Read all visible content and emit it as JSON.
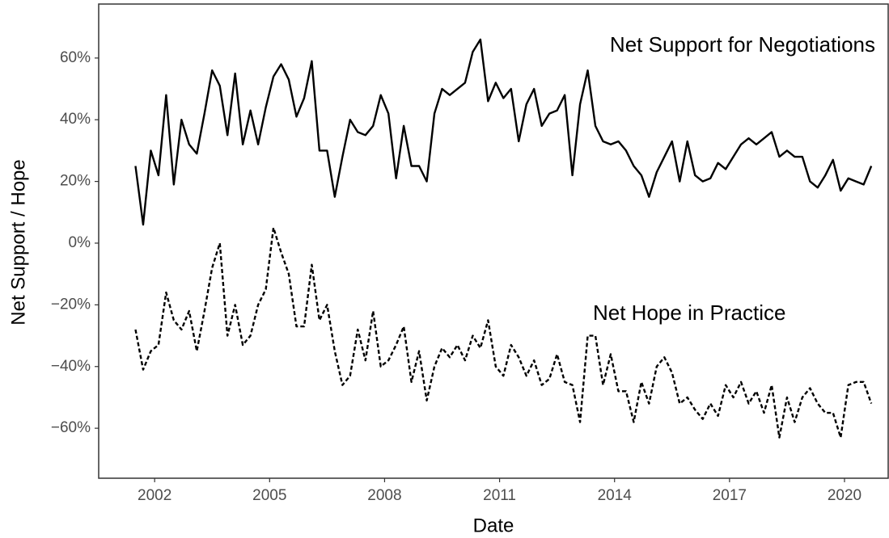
{
  "chart_data": {
    "type": "line",
    "x_label": "Date",
    "y_label": "Net Support / Hope",
    "x": [
      2001.5,
      2001.7,
      2001.9,
      2002.1,
      2002.3,
      2002.5,
      2002.7,
      2002.9,
      2003.1,
      2003.3,
      2003.5,
      2003.7,
      2003.9,
      2004.1,
      2004.3,
      2004.5,
      2004.7,
      2004.9,
      2005.1,
      2005.3,
      2005.5,
      2005.7,
      2005.9,
      2006.1,
      2006.3,
      2006.5,
      2006.7,
      2006.9,
      2007.1,
      2007.3,
      2007.5,
      2007.7,
      2007.9,
      2008.1,
      2008.3,
      2008.5,
      2008.7,
      2008.9,
      2009.1,
      2009.3,
      2009.5,
      2009.7,
      2009.9,
      2010.1,
      2010.3,
      2010.5,
      2010.7,
      2010.9,
      2011.1,
      2011.3,
      2011.5,
      2011.7,
      2011.9,
      2012.1,
      2012.3,
      2012.5,
      2012.7,
      2012.9,
      2013.1,
      2013.3,
      2013.5,
      2013.7,
      2013.9,
      2014.1,
      2014.3,
      2014.5,
      2014.7,
      2014.9,
      2015.1,
      2015.3,
      2015.5,
      2015.7,
      2015.9,
      2016.1,
      2016.3,
      2016.5,
      2016.7,
      2016.9,
      2017.1,
      2017.3,
      2017.5,
      2017.7,
      2017.9,
      2018.1,
      2018.3,
      2018.5,
      2018.7,
      2018.9,
      2019.1,
      2019.3,
      2019.5,
      2019.7,
      2019.9,
      2020.1,
      2020.3,
      2020.5,
      2020.7
    ],
    "series": [
      {
        "name": "Net Support for Negotiations",
        "color": "#000000",
        "style": "solid",
        "values": [
          25,
          6,
          30,
          22,
          48,
          19,
          40,
          32,
          29,
          42,
          56,
          51,
          35,
          55,
          32,
          43,
          32,
          44,
          54,
          58,
          53,
          41,
          47,
          59,
          30,
          30,
          15,
          28,
          40,
          36,
          35,
          38,
          48,
          42,
          21,
          38,
          25,
          25,
          20,
          42,
          50,
          48,
          50,
          52,
          62,
          66,
          46,
          52,
          47,
          50,
          33,
          45,
          50,
          38,
          42,
          43,
          48,
          22,
          45,
          56,
          38,
          33,
          32,
          33,
          30,
          25,
          22,
          15,
          23,
          28,
          33,
          20,
          33,
          22,
          20,
          21,
          26,
          24,
          28,
          32,
          34,
          32,
          34,
          36,
          28,
          30,
          28,
          28,
          20,
          18,
          22,
          27,
          17,
          21,
          20,
          19,
          25
        ]
      },
      {
        "name": "Net Hope in Practice",
        "color": "#000000",
        "style": "dashed",
        "values": [
          -28,
          -41,
          -35,
          -33,
          -16,
          -25,
          -28,
          -22,
          -35,
          -22,
          -8,
          0,
          -30,
          -20,
          -33,
          -30,
          -20,
          -15,
          5,
          -3,
          -10,
          -27,
          -27,
          -7,
          -25,
          -20,
          -35,
          -46,
          -43,
          -28,
          -38,
          -22,
          -40,
          -38,
          -33,
          -27,
          -45,
          -35,
          -51,
          -40,
          -34,
          -37,
          -33,
          -38,
          -30,
          -34,
          -25,
          -40,
          -43,
          -33,
          -37,
          -43,
          -38,
          -46,
          -44,
          -36,
          -45,
          -46,
          -58,
          -30,
          -30,
          -46,
          -36,
          -48,
          -48,
          -58,
          -45,
          -52,
          -40,
          -37,
          -42,
          -52,
          -50,
          -54,
          -57,
          -52,
          -56,
          -46,
          -50,
          -45,
          -52,
          -48,
          -55,
          -46,
          -63,
          -50,
          -58,
          -50,
          -47,
          -52,
          -55,
          -55,
          -63,
          -46,
          -45,
          -45,
          -52
        ]
      }
    ],
    "xlim": [
      2000.54,
      2021.14
    ],
    "xticks": [
      2002,
      2005,
      2008,
      2011,
      2014,
      2017,
      2020
    ],
    "ylim": [
      -76.2,
      77.5
    ],
    "yticks": [
      {
        "value": -60,
        "label": "−60%"
      },
      {
        "value": -40,
        "label": "−40%"
      },
      {
        "value": -20,
        "label": "−20%"
      },
      {
        "value": 0,
        "label": "0%"
      },
      {
        "value": 20,
        "label": "20%"
      },
      {
        "value": 40,
        "label": "40%"
      },
      {
        "value": 60,
        "label": "60%"
      }
    ],
    "grid": false
  }
}
